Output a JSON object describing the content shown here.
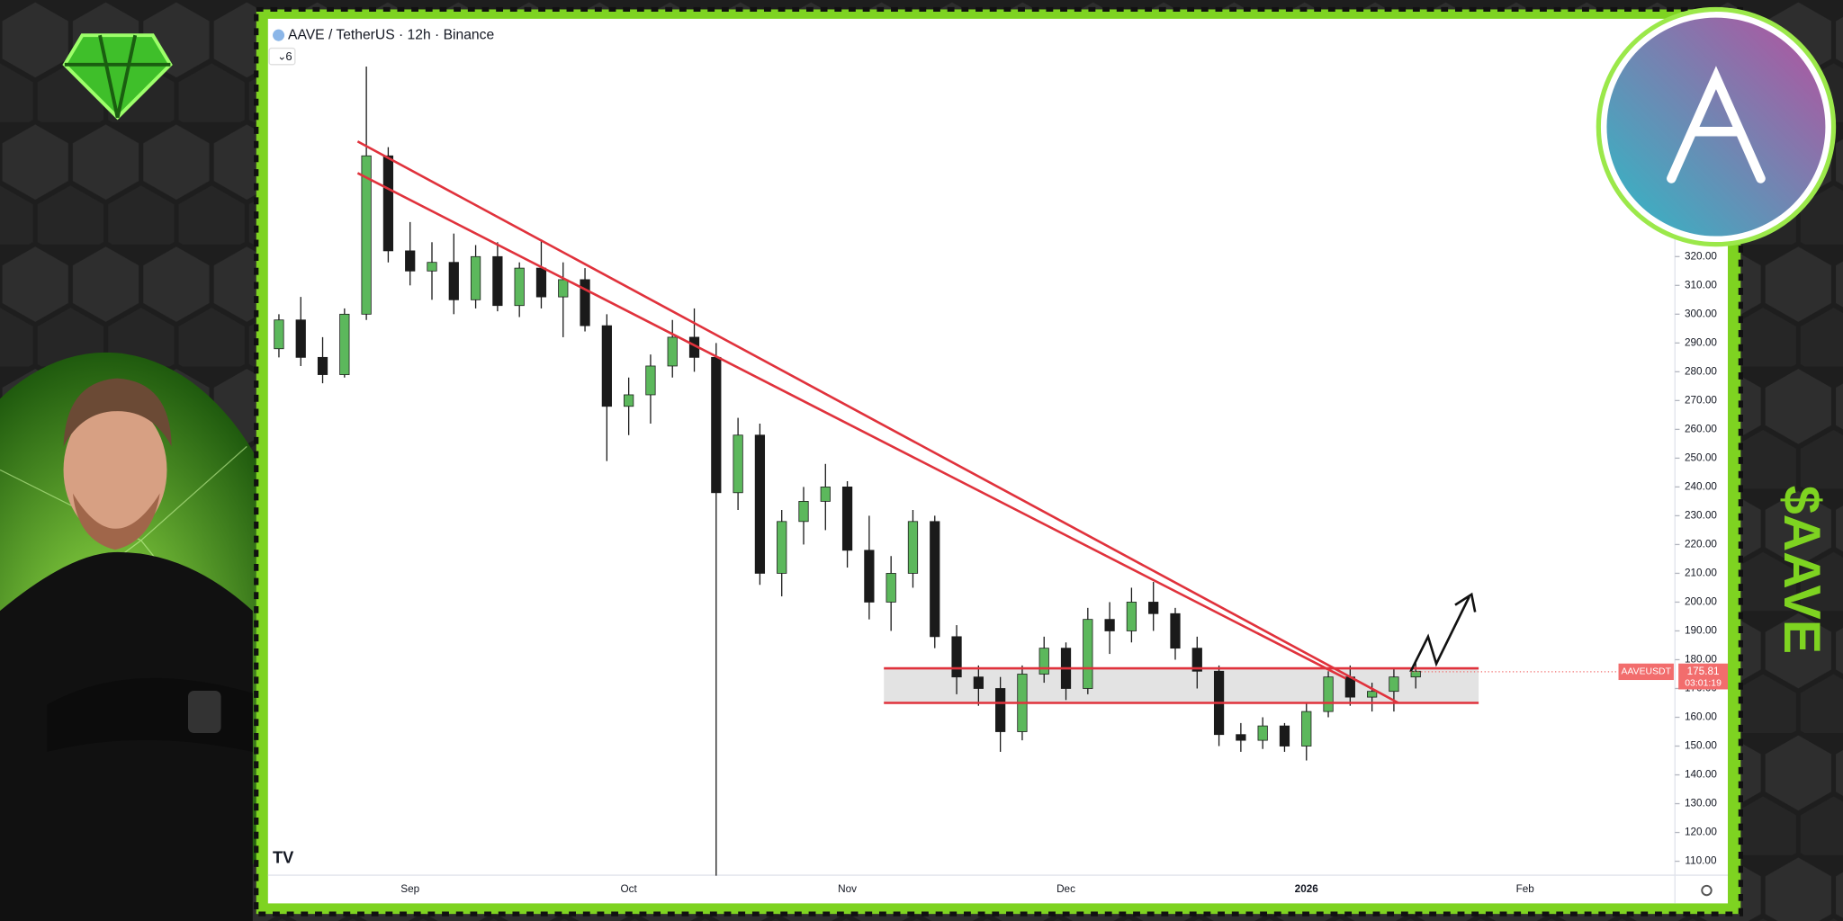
{
  "header": {
    "title": "AAVE / TetherUS · 12h · Binance",
    "indicators": "6"
  },
  "chart_data": {
    "type": "candlestick",
    "categories": [
      null,
      null,
      null,
      null,
      null,
      null,
      "Sep",
      null,
      null,
      null,
      null,
      null,
      null,
      null,
      null,
      null,
      "Oct",
      null,
      null,
      null,
      null,
      null,
      null,
      null,
      null,
      null,
      "Nov",
      null,
      null,
      null,
      null,
      null,
      null,
      null,
      null,
      null,
      "Dec",
      null,
      null,
      null,
      null,
      null,
      null,
      null,
      null,
      null,
      null,
      "2026",
      null,
      null,
      null,
      null,
      null,
      null,
      null,
      null,
      null,
      "Feb",
      null,
      null,
      null,
      null,
      null,
      null
    ],
    "open": [
      288,
      298,
      285,
      279,
      300,
      355,
      322,
      315,
      318,
      305,
      320,
      303,
      316,
      306,
      312,
      296,
      268,
      272,
      282,
      292,
      285,
      238,
      258,
      210,
      228,
      235,
      240,
      218,
      200,
      210,
      228,
      188,
      174,
      170,
      155,
      175,
      184,
      170,
      194,
      190,
      200,
      196,
      184,
      176,
      154,
      152,
      157,
      150,
      162,
      174,
      167,
      169,
      174,
      null,
      null,
      null,
      null,
      null,
      null,
      null,
      null,
      null,
      null,
      null
    ],
    "high": [
      300,
      306,
      292,
      302,
      386,
      358,
      332,
      325,
      328,
      324,
      325,
      318,
      326,
      318,
      316,
      300,
      278,
      286,
      298,
      302,
      290,
      264,
      262,
      232,
      240,
      248,
      242,
      230,
      216,
      232,
      230,
      192,
      178,
      174,
      178,
      188,
      186,
      198,
      200,
      205,
      207,
      198,
      188,
      178,
      158,
      160,
      158,
      165,
      176,
      178,
      172,
      177,
      180,
      null,
      null,
      null,
      null,
      null,
      null,
      null,
      null,
      null,
      null,
      null
    ],
    "low": [
      285,
      282,
      276,
      278,
      298,
      318,
      310,
      305,
      300,
      302,
      301,
      299,
      302,
      292,
      294,
      249,
      258,
      262,
      278,
      280,
      105,
      232,
      206,
      202,
      220,
      225,
      212,
      194,
      190,
      205,
      184,
      168,
      164,
      148,
      152,
      172,
      166,
      168,
      182,
      186,
      190,
      180,
      170,
      150,
      148,
      149,
      148,
      145,
      160,
      164,
      162,
      162,
      170,
      null,
      null,
      null,
      null,
      null,
      null,
      null,
      null,
      null,
      null,
      null
    ],
    "close": [
      298,
      285,
      279,
      300,
      355,
      322,
      315,
      318,
      305,
      320,
      303,
      316,
      306,
      312,
      296,
      268,
      272,
      282,
      292,
      285,
      238,
      258,
      210,
      228,
      235,
      240,
      218,
      200,
      210,
      228,
      188,
      174,
      170,
      155,
      175,
      184,
      170,
      194,
      190,
      200,
      196,
      184,
      176,
      154,
      152,
      157,
      150,
      162,
      174,
      167,
      169,
      174,
      176,
      null,
      null,
      null,
      null,
      null,
      null,
      null,
      null,
      null,
      null,
      null
    ],
    "up_color": "#5cb85c",
    "down_color": "#1a1a1a",
    "ylim": [
      97,
      403
    ],
    "yticks": [
      {
        "value": 110,
        "label": "110.00"
      },
      {
        "value": 120,
        "label": "120.00"
      },
      {
        "value": 130,
        "label": "130.00"
      },
      {
        "value": 140,
        "label": "140.00"
      },
      {
        "value": 150,
        "label": "150.00"
      },
      {
        "value": 160,
        "label": "160.00"
      },
      {
        "value": 170,
        "label": "170.00"
      },
      {
        "value": 180,
        "label": "180.00"
      },
      {
        "value": 190,
        "label": "190.00"
      },
      {
        "value": 200,
        "label": "200.00"
      },
      {
        "value": 210,
        "label": "210.00"
      },
      {
        "value": 220,
        "label": "220.00"
      },
      {
        "value": 230,
        "label": "230.00"
      },
      {
        "value": 240,
        "label": "240.00"
      },
      {
        "value": 250,
        "label": "250.00"
      },
      {
        "value": 260,
        "label": "260.00"
      },
      {
        "value": 270,
        "label": "270.00"
      },
      {
        "value": 280,
        "label": "280.00"
      },
      {
        "value": 290,
        "label": "290.00"
      },
      {
        "value": 300,
        "label": "300.00"
      },
      {
        "value": 310,
        "label": "310.00"
      },
      {
        "value": 320,
        "label": "320.00"
      }
    ],
    "zone": {
      "low": 165,
      "high": 177,
      "color": "#e0323c"
    },
    "trendlines": [
      {
        "x": [
          3.6,
          51.2
        ],
        "y": [
          360,
          165
        ]
      },
      {
        "x": [
          3.6,
          48.8
        ],
        "y": [
          349,
          173.5
        ]
      }
    ],
    "last_price": {
      "symbol": "AAVEUSDT",
      "value": 175.81,
      "countdown": "03:01:19",
      "color": "#f26d6d"
    }
  },
  "branding": {
    "ticker": "$AAVE"
  }
}
